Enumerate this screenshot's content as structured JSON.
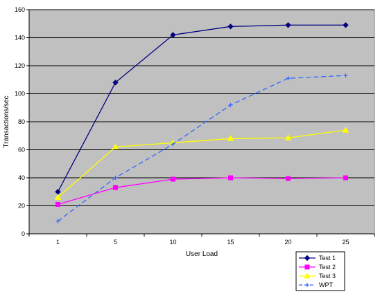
{
  "chart_data": {
    "type": "line",
    "categories": [
      "1",
      "5",
      "10",
      "15",
      "20",
      "25"
    ],
    "xlabel": "User Load",
    "ylabel": "Transactions/sec",
    "ylim": [
      0,
      160
    ],
    "yticks": [
      0,
      20,
      40,
      60,
      80,
      100,
      120,
      140,
      160
    ],
    "grid": true,
    "plot_background": "#c0c0c0",
    "legend_position": "bottom-right",
    "series": [
      {
        "name": "Test 1",
        "values": [
          30,
          108,
          142,
          148,
          149,
          149
        ],
        "color": "#000080",
        "marker": "diamond",
        "dash": "solid"
      },
      {
        "name": "Test 2",
        "values": [
          21,
          33,
          39,
          40,
          39.5,
          40
        ],
        "color": "#ff00ff",
        "marker": "square",
        "dash": "solid"
      },
      {
        "name": "Test 3",
        "values": [
          26,
          62,
          65,
          68,
          68.5,
          74
        ],
        "color": "#ffff00",
        "marker": "triangle",
        "dash": "solid"
      },
      {
        "name": "WPT",
        "values": [
          9,
          40,
          64,
          92,
          111,
          113
        ],
        "color": "#3366ff",
        "marker": "plus",
        "dash": "dashed"
      }
    ]
  }
}
